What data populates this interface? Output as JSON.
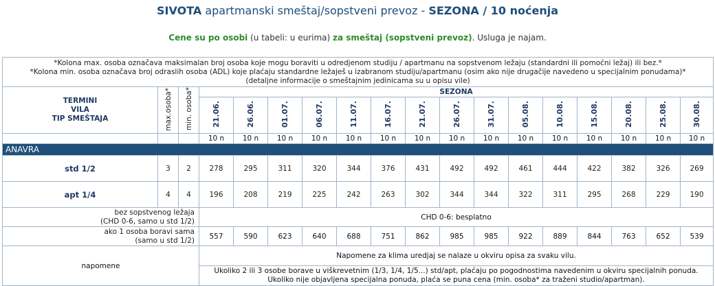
{
  "title": {
    "place": "SIVOTA",
    "desc": " apartmanski smeštaj/sopstveni prevoz - ",
    "season": "SEZONA / 10 noćenja"
  },
  "subtitle": {
    "part1": "Cene su po osobi",
    "part2": " (u tabeli: u eurima) ",
    "part3": "za smeštaj (sopstveni prevoz)",
    "part4": ". Usluga je najam."
  },
  "notes": {
    "line1": "*Kolona max. osoba označava maksimalan broj osoba koje mogu boraviti u odredjenom studiju / apartmanu na sopstvenom ležaju (standardni ili pomoćni ležaj) ili bez.*",
    "line2": "*Kolona min. osoba označava broj odraslih osoba (ADL) koje plaćaju standardne ležaješ u izabranom studiju/apartmanu (osim ako nije drugačije navedeno u specijalnim ponudama)*",
    "line3": "(detaljne informacije o smeštajnim jedinicama su u opisu vile)"
  },
  "header": {
    "left_line1": "TERMINI",
    "left_line2": "VILA",
    "left_line3": "TIP SMEŠTAJA",
    "max": "max.osoba*",
    "min": "min. osoba*",
    "season": "SEZONA",
    "dates": [
      "21.06.",
      "26.06.",
      "01.07.",
      "06.07.",
      "11.07.",
      "16.07.",
      "21.07.",
      "26.07.",
      "31.07.",
      "05.08.",
      "10.08.",
      "15.08.",
      "20.08.",
      "25.08.",
      "30.08."
    ],
    "nights": [
      "10 n",
      "10 n",
      "10 n",
      "10 n",
      "10 n",
      "10 n",
      "10 n",
      "10 n",
      "10 n",
      "10 n",
      "10 n",
      "10 n",
      "10 n",
      "10 n",
      "10 n"
    ]
  },
  "region": "ANAVRA",
  "rows": [
    {
      "type": "std 1/2",
      "max": "3",
      "min": "2",
      "prices": [
        "278",
        "295",
        "311",
        "320",
        "344",
        "376",
        "431",
        "492",
        "492",
        "461",
        "444",
        "422",
        "382",
        "326",
        "269"
      ]
    },
    {
      "type": "apt 1/4",
      "max": "4",
      "min": "4",
      "prices": [
        "196",
        "208",
        "219",
        "225",
        "242",
        "263",
        "302",
        "344",
        "344",
        "322",
        "311",
        "295",
        "268",
        "229",
        "190"
      ]
    }
  ],
  "extra": {
    "no_bed_label1": "bez sopstvenog ležaja",
    "no_bed_label2": "(CHD 0-6, samo u std 1/2)",
    "no_bed_value": "CHD 0-6: besplatno",
    "single_label1": "ako 1 osoba boravi sama",
    "single_label2": "(samo u std 1/2)",
    "single_prices": [
      "557",
      "590",
      "623",
      "640",
      "688",
      "751",
      "862",
      "985",
      "985",
      "922",
      "889",
      "844",
      "763",
      "652",
      "539"
    ]
  },
  "remarks": {
    "label": "napomene",
    "line1": "Napomene za klima uredjaj se nalaze u okviru opisa za svaku vilu.",
    "line2": "Ukoliko 2 ili 3 osobe borave u viškrevetnim (1/3, 1/4, 1/5...) std/apt, plaćaju po pogodnostima navedenim u okviru specijalnih ponuda.",
    "line3": "Ukoliko nije objavljena specijalna ponuda, plaća se puna cena (min. osoba* za traženi studio/apartman)."
  }
}
